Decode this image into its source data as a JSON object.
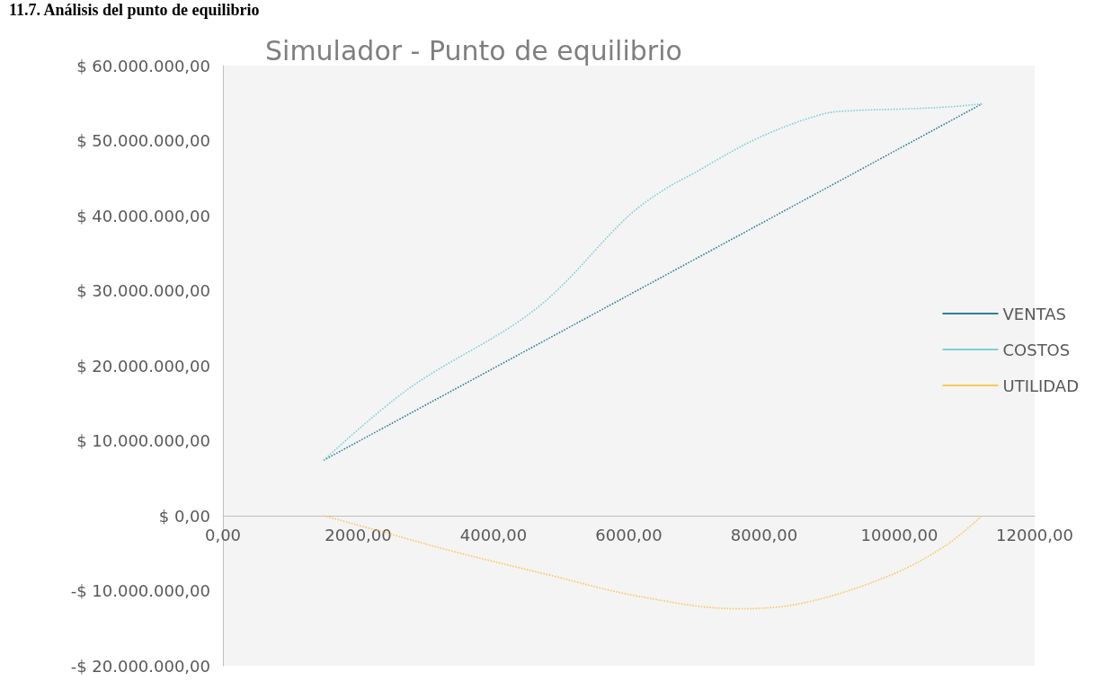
{
  "chart_data": {
    "type": "line",
    "title": "Simulador - Punto de equilibrio",
    "annotations": [
      "11.7. Análisis del punto de equilibrio"
    ],
    "series": [
      {
        "name": "VENTAS",
        "color": "#2e7f9a",
        "x": [
          1490,
          11220
        ],
        "values": [
          7400000,
          54900000
        ]
      },
      {
        "name": "COSTOS",
        "color": "#7fcfd9",
        "x": [
          1490,
          2740,
          4630,
          6000,
          6530,
          6950,
          7900,
          8850,
          9320,
          10030,
          10740,
          11220
        ],
        "values": [
          7400000,
          16900000,
          27600000,
          40000000,
          43500000,
          45600000,
          50300000,
          53500000,
          54000000,
          54200000,
          54500000,
          54900000
        ]
      },
      {
        "name": "UTILIDAD",
        "color": "#f9c95a",
        "x": [
          1490,
          2380,
          3380,
          4870,
          6120,
          7610,
          8600,
          9850,
          10680,
          11220
        ],
        "values": [
          0,
          -2200000,
          -4700000,
          -8000000,
          -10700000,
          -12400000,
          -11600000,
          -8000000,
          -4000000,
          0
        ]
      }
    ],
    "xlim": [
      0,
      12000
    ],
    "xticks": [
      {
        "value": 0,
        "label": "0,00"
      },
      {
        "value": 2000,
        "label": "2000,00"
      },
      {
        "value": 4000,
        "label": "4000,00"
      },
      {
        "value": 6000,
        "label": "6000,00"
      },
      {
        "value": 8000,
        "label": "8000,00"
      },
      {
        "value": 10000,
        "label": "10000,00"
      },
      {
        "value": 12000,
        "label": "12000,00"
      }
    ],
    "ylim": [
      -20000000,
      60000000
    ],
    "yticks": [
      {
        "value": -20000000,
        "label": "-$ 20.000.000,00"
      },
      {
        "value": -10000000,
        "label": "-$ 10.000.000,00"
      },
      {
        "value": 0,
        "label": "$ 0,00"
      },
      {
        "value": 10000000,
        "label": "$ 10.000.000,00"
      },
      {
        "value": 20000000,
        "label": "$ 20.000.000,00"
      },
      {
        "value": 30000000,
        "label": "$ 30.000.000,00"
      },
      {
        "value": 40000000,
        "label": "$ 40.000.000,00"
      },
      {
        "value": 50000000,
        "label": "$ 50.000.000,00"
      },
      {
        "value": 60000000,
        "label": "$ 60.000.000,00"
      }
    ],
    "grid": false,
    "legend": "right",
    "marker": "none",
    "line_style": "dotted"
  }
}
